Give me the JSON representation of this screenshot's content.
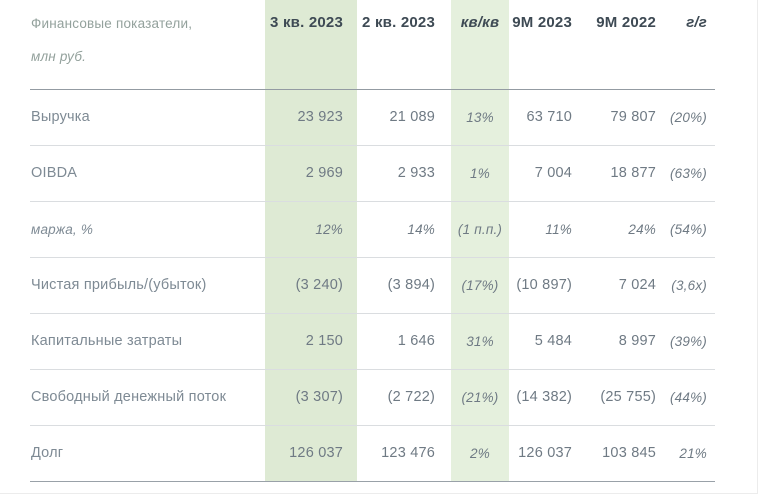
{
  "chart_data": {
    "type": "table",
    "title": "Финансовые показатели, млн руб.",
    "header": {
      "label_line1": "Финансовые показатели,",
      "label_line2": "млн руб.",
      "columns": [
        "3 кв. 2023",
        "2 кв. 2023",
        "кв/кв",
        "9М 2023",
        "9М 2022",
        "г/г"
      ]
    },
    "rows": [
      {
        "label": "Выручка",
        "values": [
          "23 923",
          "21 089",
          "13%",
          "63 710",
          "79 807",
          "(20%)"
        ]
      },
      {
        "label": "OIBDA",
        "values": [
          "2 969",
          "2 933",
          "1%",
          "7 004",
          "18 877",
          "(63%)"
        ]
      },
      {
        "label": "маржа, %",
        "values": [
          "12%",
          "14%",
          "(1 п.п.)",
          "11%",
          "24%",
          "(54%)"
        ]
      },
      {
        "label": "Чистая прибыль/(убыток)",
        "values": [
          "(3 240)",
          "(3 894)",
          "(17%)",
          "(10 897)",
          "7 024",
          "(3,6x)"
        ]
      },
      {
        "label": "Капитальные затраты",
        "values": [
          "2 150",
          "1 646",
          "31%",
          "5 484",
          "8 997",
          "(39%)"
        ]
      },
      {
        "label": "Свободный денежный поток",
        "values": [
          "(3 307)",
          "(2 722)",
          "(21%)",
          "(14 382)",
          "(25 755)",
          "(44%)"
        ]
      },
      {
        "label": "Долг",
        "values": [
          "126 037",
          "123 476",
          "2%",
          "126 037",
          "103 845",
          "21%"
        ]
      }
    ],
    "layout": {
      "highlighted_columns": [
        "3 кв. 2023",
        "кв/кв"
      ],
      "italic_columns": [
        "кв/кв",
        "г/г"
      ],
      "italic_rows": [
        "маржа, %"
      ],
      "grid": "horizontal-lines-only"
    }
  },
  "colors": {
    "highlight_quarter_column": "#deead4",
    "highlight_qoq_column": "#e5f0dd",
    "header_text": "#3e4a54",
    "row_label_text": "#7e8a94",
    "value_text": "#6f7a84",
    "table_title_text": "#93a19c",
    "header_rule": "#939ba2",
    "row_rule": "#dadde0",
    "background": "#ffffff"
  }
}
